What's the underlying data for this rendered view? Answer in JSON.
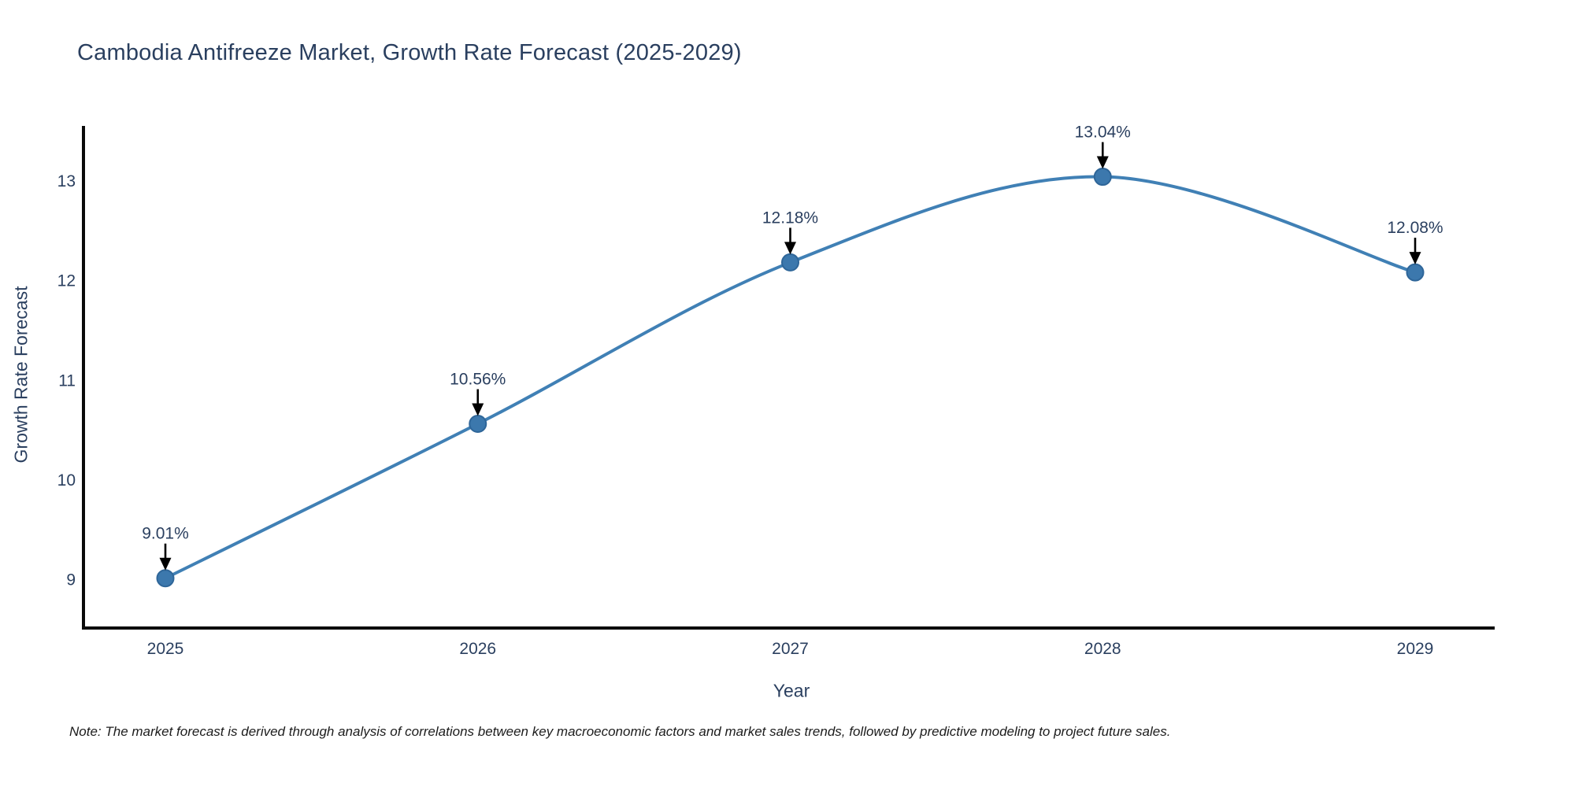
{
  "chart_data": {
    "type": "line",
    "title": "Cambodia Antifreeze Market, Growth Rate Forecast (2025-2029)",
    "xlabel": "Year",
    "ylabel": "Growth Rate Forecast",
    "note": "Note: The market forecast is derived through analysis of correlations between key macroeconomic factors and market sales trends, followed by predictive modeling to project future sales.",
    "categories": [
      "2025",
      "2026",
      "2027",
      "2028",
      "2029"
    ],
    "series": [
      {
        "name": "Growth Rate Forecast",
        "values": [
          9.01,
          10.56,
          12.18,
          13.04,
          12.08
        ]
      }
    ],
    "point_labels": [
      "9.01%",
      "10.56%",
      "12.18%",
      "13.04%",
      "12.08%"
    ],
    "yticks": [
      9,
      10,
      11,
      12,
      13
    ],
    "ylim": [
      8.51,
      13.55
    ],
    "line_shape": "spline",
    "grid": false,
    "legend_position": "none",
    "annotations_style": "value-label-with-down-arrow",
    "colors": {
      "line": "#4080b5",
      "marker_fill": "#3c78ad",
      "marker_edge": "#2f6699",
      "axis_line": "#0a0a0a",
      "text": "#2a3f5f",
      "annotation_arrow": "#000000",
      "note_text": "#1c1c1c",
      "background": "#ffffff"
    }
  }
}
